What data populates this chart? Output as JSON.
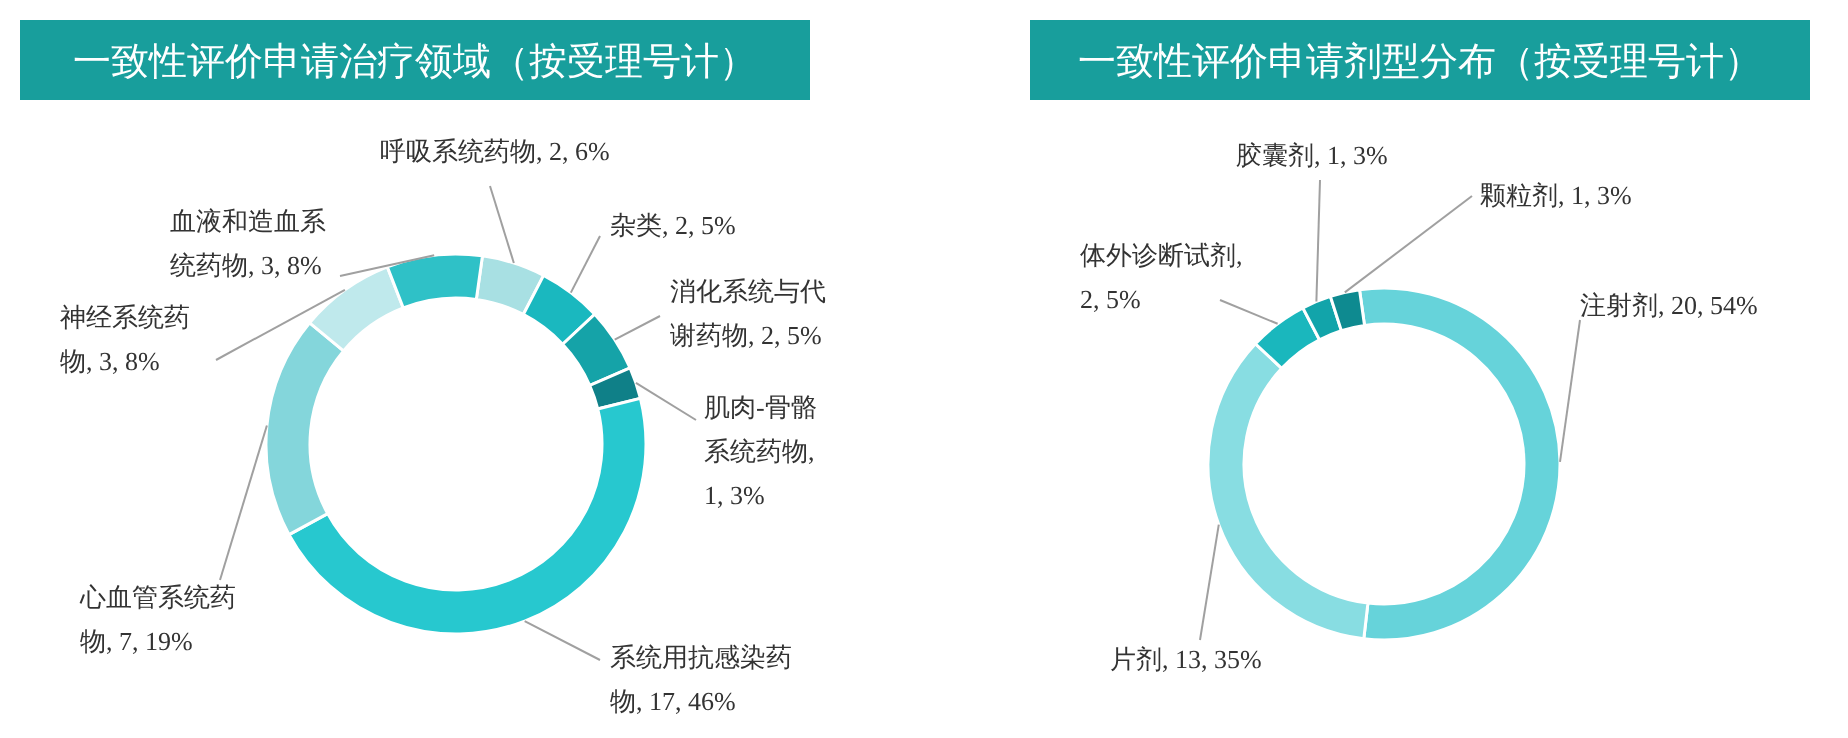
{
  "chart_data": [
    {
      "type": "donut",
      "title": "一致性评价申请治疗领域（按受理号计）",
      "categories": [
        "呼吸系统药物",
        "杂类",
        "消化系统与代谢药物",
        "肌肉-骨骼系统药物",
        "系统用抗感染药物",
        "心血管系统药物",
        "神经系统药物",
        "血液和造血系统药物"
      ],
      "values": [
        2,
        2,
        2,
        1,
        17,
        7,
        3,
        3
      ],
      "colors": [
        "#a8e0e3",
        "#1ab8bf",
        "#15a3a8",
        "#0f8088",
        "#27c8cf",
        "#84d6db",
        "#bfe9ec",
        "#2fc1c7"
      ],
      "value_labels": [
        ", 2, 6%",
        ", 2, 5%",
        ", 2, 5%",
        ", 1, 3%",
        ", 17, 46%",
        ", 7, 19%",
        ", 3, 8%",
        ", 3, 8%"
      ]
    },
    {
      "type": "donut",
      "title": "一致性评价申请剂型分布（按受理号计）",
      "categories": [
        "注射剂",
        "片剂",
        "体外诊断试剂",
        "胶囊剂",
        "颗粒剂"
      ],
      "values": [
        20,
        13,
        2,
        1,
        1
      ],
      "colors": [
        "#66d3da",
        "#88dde2",
        "#1ab7bd",
        "#12a4aa",
        "#0e8a90"
      ],
      "value_labels": [
        ", 20, 54%",
        ", 13, 35%",
        ", 2, 5%",
        ", 1, 3%",
        ", 1, 3%"
      ]
    }
  ]
}
